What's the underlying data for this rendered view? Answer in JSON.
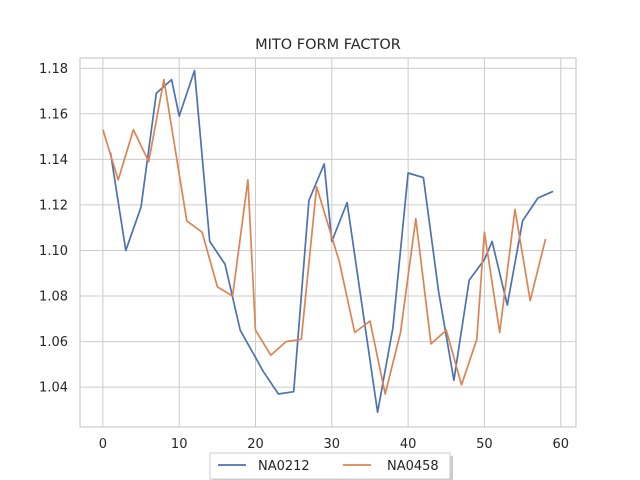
{
  "chart_data": {
    "type": "line",
    "title": "MITO FORM FACTOR",
    "xlabel": "",
    "ylabel": "",
    "xlim": [
      -3,
      62
    ],
    "ylim": [
      1.0225,
      1.1845
    ],
    "xticks": [
      0,
      10,
      20,
      30,
      40,
      50,
      60
    ],
    "xtick_labels": [
      "0",
      "10",
      "20",
      "30",
      "40",
      "50",
      "60"
    ],
    "yticks": [
      1.04,
      1.06,
      1.08,
      1.1,
      1.12,
      1.14,
      1.16,
      1.18
    ],
    "ytick_labels": [
      "1.04",
      "1.06",
      "1.08",
      "1.10",
      "1.12",
      "1.14",
      "1.16",
      "1.18"
    ],
    "grid": true,
    "legend_position": "bottom-center",
    "series": [
      {
        "name": "NA0212",
        "color": "#4c72b0",
        "x": [
          1,
          3,
          5,
          7,
          9,
          10,
          12,
          14,
          16,
          18,
          20,
          21,
          23,
          25,
          27,
          29,
          30,
          32,
          34,
          36,
          38,
          40,
          42,
          44,
          46,
          48,
          50,
          51,
          53,
          55,
          57,
          59
        ],
        "y": [
          1.143,
          1.1,
          1.119,
          1.169,
          1.175,
          1.159,
          1.179,
          1.104,
          1.094,
          1.065,
          1.053,
          1.047,
          1.037,
          1.038,
          1.122,
          1.138,
          1.104,
          1.121,
          1.075,
          1.029,
          1.066,
          1.134,
          1.132,
          1.082,
          1.043,
          1.087,
          1.096,
          1.104,
          1.076,
          1.113,
          1.123,
          1.126
        ]
      },
      {
        "name": "NA0458",
        "color": "#dd8452",
        "x": [
          0,
          2,
          4,
          6,
          8,
          11,
          13,
          15,
          17,
          19,
          20,
          22,
          24,
          26,
          28,
          31,
          33,
          35,
          37,
          39,
          41,
          43,
          45,
          47,
          49,
          50,
          52,
          54,
          56,
          58
        ],
        "y": [
          1.153,
          1.131,
          1.153,
          1.139,
          1.175,
          1.113,
          1.108,
          1.084,
          1.08,
          1.131,
          1.065,
          1.054,
          1.06,
          1.061,
          1.128,
          1.095,
          1.064,
          1.069,
          1.037,
          1.064,
          1.114,
          1.059,
          1.065,
          1.041,
          1.061,
          1.108,
          1.064,
          1.118,
          1.078,
          1.105
        ]
      }
    ]
  }
}
